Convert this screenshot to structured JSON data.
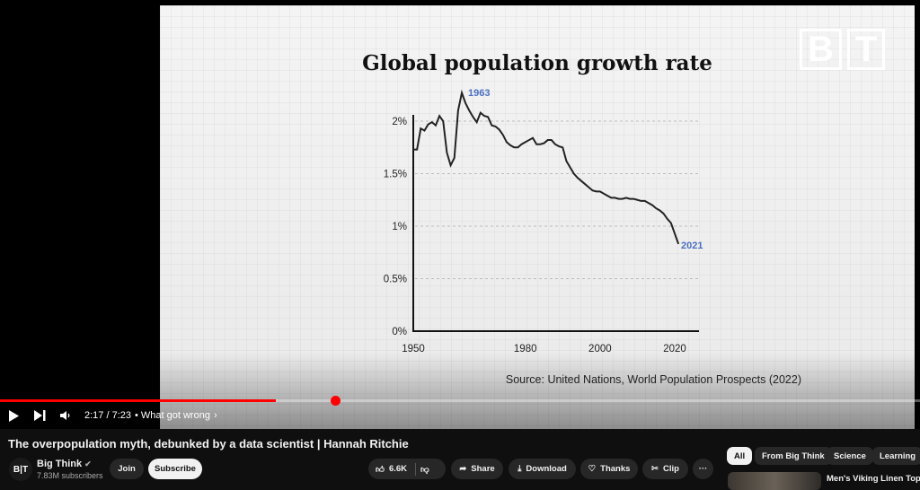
{
  "video": {
    "logo_text": "BT",
    "chart_data": {
      "type": "line",
      "title": "Global population growth rate",
      "xlabel": "",
      "ylabel": "",
      "xlim": [
        1950,
        2021
      ],
      "ylim": [
        0,
        2.4
      ],
      "x_ticks": [
        "1950",
        "1980",
        "2000",
        "2020"
      ],
      "y_ticks": [
        "0%",
        "0.5%",
        "1%",
        "1.5%",
        "2%"
      ],
      "annotations": [
        "1963",
        "2021"
      ],
      "source": "Source: United Nations, World Population Prospects (2022)",
      "x": [
        1950,
        1951,
        1952,
        1953,
        1954,
        1955,
        1956,
        1957,
        1958,
        1959,
        1960,
        1961,
        1962,
        1963,
        1964,
        1965,
        1966,
        1967,
        1968,
        1969,
        1970,
        1971,
        1972,
        1973,
        1974,
        1975,
        1976,
        1977,
        1978,
        1979,
        1980,
        1981,
        1982,
        1983,
        1984,
        1985,
        1986,
        1987,
        1988,
        1989,
        1990,
        1991,
        1992,
        1993,
        1994,
        1995,
        1996,
        1997,
        1998,
        1999,
        2000,
        2001,
        2002,
        2003,
        2004,
        2005,
        2006,
        2007,
        2008,
        2009,
        2010,
        2011,
        2012,
        2013,
        2014,
        2015,
        2016,
        2017,
        2018,
        2019,
        2020,
        2021
      ],
      "values": [
        1.73,
        1.73,
        1.93,
        1.91,
        1.97,
        1.99,
        1.96,
        2.05,
        2.0,
        1.7,
        1.58,
        1.65,
        2.1,
        2.27,
        2.17,
        2.1,
        2.04,
        1.99,
        2.08,
        2.05,
        2.04,
        1.96,
        1.95,
        1.92,
        1.87,
        1.8,
        1.77,
        1.75,
        1.75,
        1.78,
        1.8,
        1.82,
        1.84,
        1.78,
        1.78,
        1.79,
        1.82,
        1.82,
        1.78,
        1.76,
        1.75,
        1.62,
        1.56,
        1.5,
        1.46,
        1.43,
        1.4,
        1.37,
        1.34,
        1.33,
        1.33,
        1.31,
        1.29,
        1.27,
        1.27,
        1.26,
        1.26,
        1.27,
        1.26,
        1.26,
        1.25,
        1.24,
        1.24,
        1.22,
        1.2,
        1.17,
        1.15,
        1.12,
        1.07,
        1.03,
        0.93,
        0.83
      ]
    }
  },
  "player": {
    "progress": 0.3,
    "time": "2:17 / 7:23",
    "chapter": "• What got wrong",
    "chapter_arrow": "›"
  },
  "title": "The overpopulation myth, debunked by a data scientist | Hannah Ritchie",
  "channel": {
    "avatar": "B|T",
    "name": "Big Think",
    "verified": "✔",
    "subscribers": "7.83M subscribers",
    "join": "Join",
    "subscribe": "Subscribe"
  },
  "actions": {
    "likes": "6.6K",
    "share": "Share",
    "download": "Download",
    "thanks": "Thanks",
    "clip": "Clip",
    "more": "···"
  },
  "chips": [
    "All",
    "From Big Think",
    "Science",
    "Learning"
  ],
  "recommended": {
    "title": "Men's Viking Linen Tops fo"
  }
}
